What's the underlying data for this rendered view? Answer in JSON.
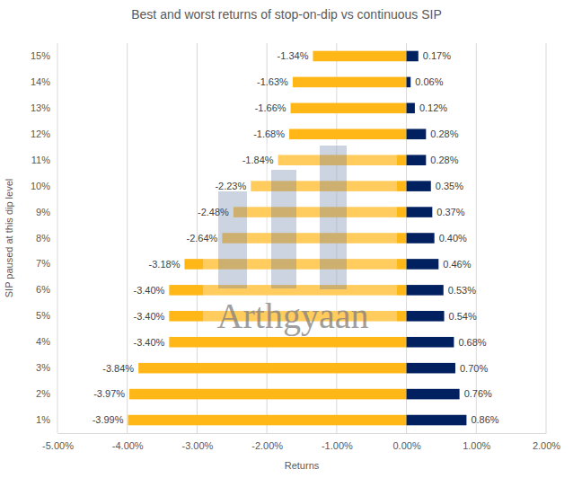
{
  "chart_data": {
    "type": "bar",
    "orientation": "horizontal",
    "title": "Best and worst returns of stop-on-dip vs continuous SIP",
    "x_label": "Returns",
    "y_label": "SIP paused at this dip level",
    "annotations": [
      "Arthgyaan"
    ],
    "categories": [
      "1%",
      "2%",
      "3%",
      "4%",
      "5%",
      "6%",
      "7%",
      "8%",
      "9%",
      "10%",
      "11%",
      "12%",
      "13%",
      "14%",
      "15%"
    ],
    "series": [
      {
        "color": "#FFB718",
        "values": [
          -3.99,
          -3.97,
          -3.84,
          -3.4,
          -3.4,
          -3.4,
          -3.18,
          -2.64,
          -2.48,
          -2.23,
          -1.84,
          -1.68,
          -1.66,
          -1.63,
          -1.34
        ],
        "value_labels": [
          "-3.99%",
          "-3.97%",
          "-3.84%",
          "-3.40%",
          "-3.40%",
          "-3.40%",
          "-3.18%",
          "-2.64%",
          "-2.48%",
          "-2.23%",
          "-1.84%",
          "-1.68%",
          "-1.66%",
          "-1.63%",
          "-1.34%"
        ]
      },
      {
        "color": "#002060",
        "values": [
          0.86,
          0.76,
          0.7,
          0.68,
          0.54,
          0.53,
          0.46,
          0.4,
          0.37,
          0.35,
          0.28,
          0.28,
          0.12,
          0.06,
          0.17
        ],
        "value_labels": [
          "0.86%",
          "0.76%",
          "0.70%",
          "0.68%",
          "0.54%",
          "0.53%",
          "0.46%",
          "0.40%",
          "0.37%",
          "0.35%",
          "0.28%",
          "0.28%",
          "0.12%",
          "0.06%",
          "0.17%"
        ]
      }
    ],
    "xlim": [
      -5,
      2
    ],
    "xticks": [
      {
        "value": -5,
        "label": "-5.00%"
      },
      {
        "value": -4,
        "label": "-4.00%"
      },
      {
        "value": -3,
        "label": "-3.00%"
      },
      {
        "value": -2,
        "label": "-2.00%"
      },
      {
        "value": -1,
        "label": "-1.00%"
      },
      {
        "value": 0,
        "label": "0.00%"
      },
      {
        "value": 1,
        "label": "1.00%"
      },
      {
        "value": 2,
        "label": "2.00%"
      }
    ],
    "grid": true,
    "data_labels": true
  }
}
